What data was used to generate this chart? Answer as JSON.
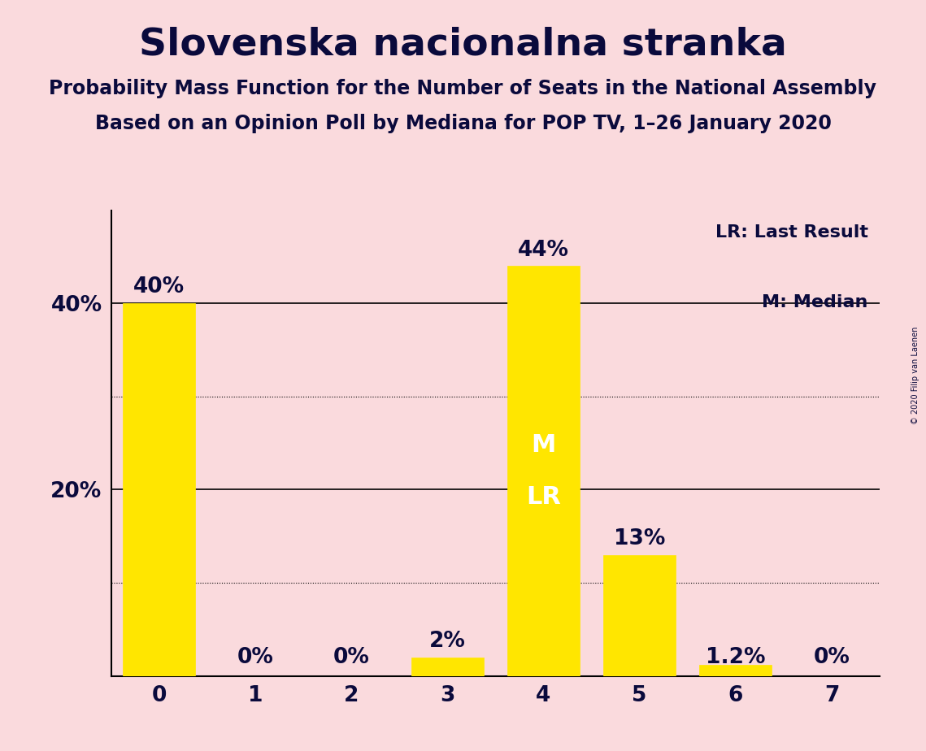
{
  "title": "Slovenska nacionalna stranka",
  "subtitle1": "Probability Mass Function for the Number of Seats in the National Assembly",
  "subtitle2": "Based on an Opinion Poll by Mediana for POP TV, 1–26 January 2020",
  "copyright": "© 2020 Filip van Laenen",
  "categories": [
    0,
    1,
    2,
    3,
    4,
    5,
    6,
    7
  ],
  "values": [
    40.0,
    0.0,
    0.0,
    2.0,
    44.0,
    13.0,
    1.2,
    0.0
  ],
  "labels": [
    "40%",
    "0%",
    "0%",
    "2%",
    "44%",
    "13%",
    "1.2%",
    "0%"
  ],
  "bar_color": "#FFE600",
  "background_color": "#FADADD",
  "text_color": "#0A0A3C",
  "ylim": [
    0,
    50
  ],
  "solid_gridlines": [
    20,
    40
  ],
  "dotted_gridlines": [
    10,
    30
  ],
  "median_seat": 4,
  "last_result_seat": 4,
  "legend_lr": "LR: Last Result",
  "legend_m": "M: Median",
  "title_fontsize": 34,
  "subtitle_fontsize": 17,
  "label_fontsize": 19,
  "axis_fontsize": 19,
  "inner_label_color": "#FFFFFF",
  "inner_label_fontsize": 22,
  "ytick_labels_positions": [
    20,
    40
  ],
  "ytick_labels_text": [
    "20%",
    "40%"
  ]
}
